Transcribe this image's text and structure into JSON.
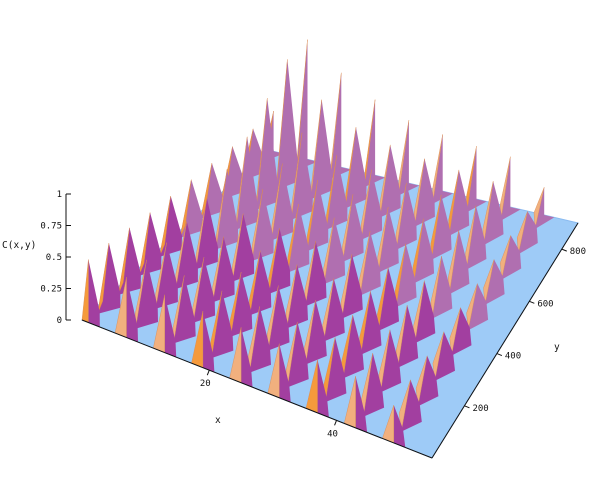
{
  "chart_data": {
    "type": "surface3d",
    "title": "",
    "xlabel": "x",
    "ylabel": "y",
    "zlabel": "C(x,y)",
    "x_range": [
      0,
      55
    ],
    "y_range": [
      0,
      900
    ],
    "z_range": [
      0,
      1
    ],
    "x_ticks": [
      {
        "value": 20,
        "label": "20"
      },
      {
        "value": 40,
        "label": "40"
      }
    ],
    "y_ticks": [
      {
        "value": 200,
        "label": "200"
      },
      {
        "value": 400,
        "label": "400"
      },
      {
        "value": 600,
        "label": "600"
      },
      {
        "value": 800,
        "label": "800"
      }
    ],
    "z_ticks": [
      {
        "value": 0,
        "label": "0"
      },
      {
        "value": 0.25,
        "label": "0.25"
      },
      {
        "value": 0.5,
        "label": "0.5"
      },
      {
        "value": 0.75,
        "label": "0.75"
      },
      {
        "value": 1,
        "label": "1"
      }
    ],
    "peak_rows": [
      {
        "x": 1,
        "y": [
          0,
          100,
          200,
          300,
          400,
          500,
          600,
          700,
          800,
          900
        ],
        "z": [
          0.5,
          0.48,
          0.45,
          0.42,
          0.4,
          0.38,
          0.36,
          0.34,
          0.33,
          0.32
        ]
      },
      {
        "x": 7,
        "y": [
          0,
          100,
          200,
          300,
          400,
          500,
          600,
          700,
          800,
          900
        ],
        "z": [
          0.48,
          0.46,
          0.44,
          0.45,
          0.48,
          0.55,
          0.65,
          0.8,
          0.95,
          0.95
        ]
      },
      {
        "x": 13,
        "y": [
          0,
          100,
          200,
          300,
          400,
          500,
          600,
          700,
          800,
          900
        ],
        "z": [
          0.46,
          0.45,
          0.43,
          0.43,
          0.45,
          0.48,
          0.52,
          0.6,
          0.7,
          0.75
        ]
      },
      {
        "x": 19,
        "y": [
          0,
          100,
          200,
          300,
          400,
          500,
          600,
          700,
          800,
          900
        ],
        "z": [
          0.45,
          0.44,
          0.42,
          0.42,
          0.43,
          0.45,
          0.47,
          0.5,
          0.55,
          0.6
        ]
      },
      {
        "x": 25,
        "y": [
          0,
          100,
          200,
          300,
          400,
          500,
          600,
          700,
          800,
          900
        ],
        "z": [
          0.44,
          0.43,
          0.42,
          0.41,
          0.42,
          0.43,
          0.44,
          0.46,
          0.48,
          0.5
        ]
      },
      {
        "x": 31,
        "y": [
          0,
          100,
          200,
          300,
          400,
          500,
          600,
          700,
          800,
          900
        ],
        "z": [
          0.43,
          0.42,
          0.41,
          0.4,
          0.41,
          0.41,
          0.42,
          0.43,
          0.44,
          0.45
        ]
      },
      {
        "x": 37,
        "y": [
          0,
          100,
          200,
          300,
          400,
          500,
          600,
          700,
          800,
          900
        ],
        "z": [
          0.42,
          0.41,
          0.4,
          0.4,
          0.4,
          0.4,
          0.41,
          0.41,
          0.42,
          0.42
        ]
      },
      {
        "x": 43,
        "y": [
          0,
          100,
          200,
          300,
          400,
          500,
          600,
          700,
          800,
          900
        ],
        "z": [
          0.41,
          0.4,
          0.39,
          0.39,
          0.39,
          0.39,
          0.4,
          0.4,
          0.4,
          0.4
        ]
      },
      {
        "x": 49,
        "y": [
          0,
          100,
          200,
          300,
          400,
          500,
          600,
          700,
          800,
          900
        ],
        "z": [
          0.3,
          0.3,
          0.29,
          0.28,
          0.27,
          0.26,
          0.25,
          0.24,
          0.23,
          0.22
        ]
      }
    ],
    "colors": {
      "floor": "#9ecbf7",
      "floor_edge": "#8bbbf0",
      "peak_front": "#f1b07e",
      "peak_front_alt": "#f59a3c",
      "peak_side": "#a23fa0",
      "peak_side_far": "#b06fb0",
      "axis": "#111111"
    }
  }
}
